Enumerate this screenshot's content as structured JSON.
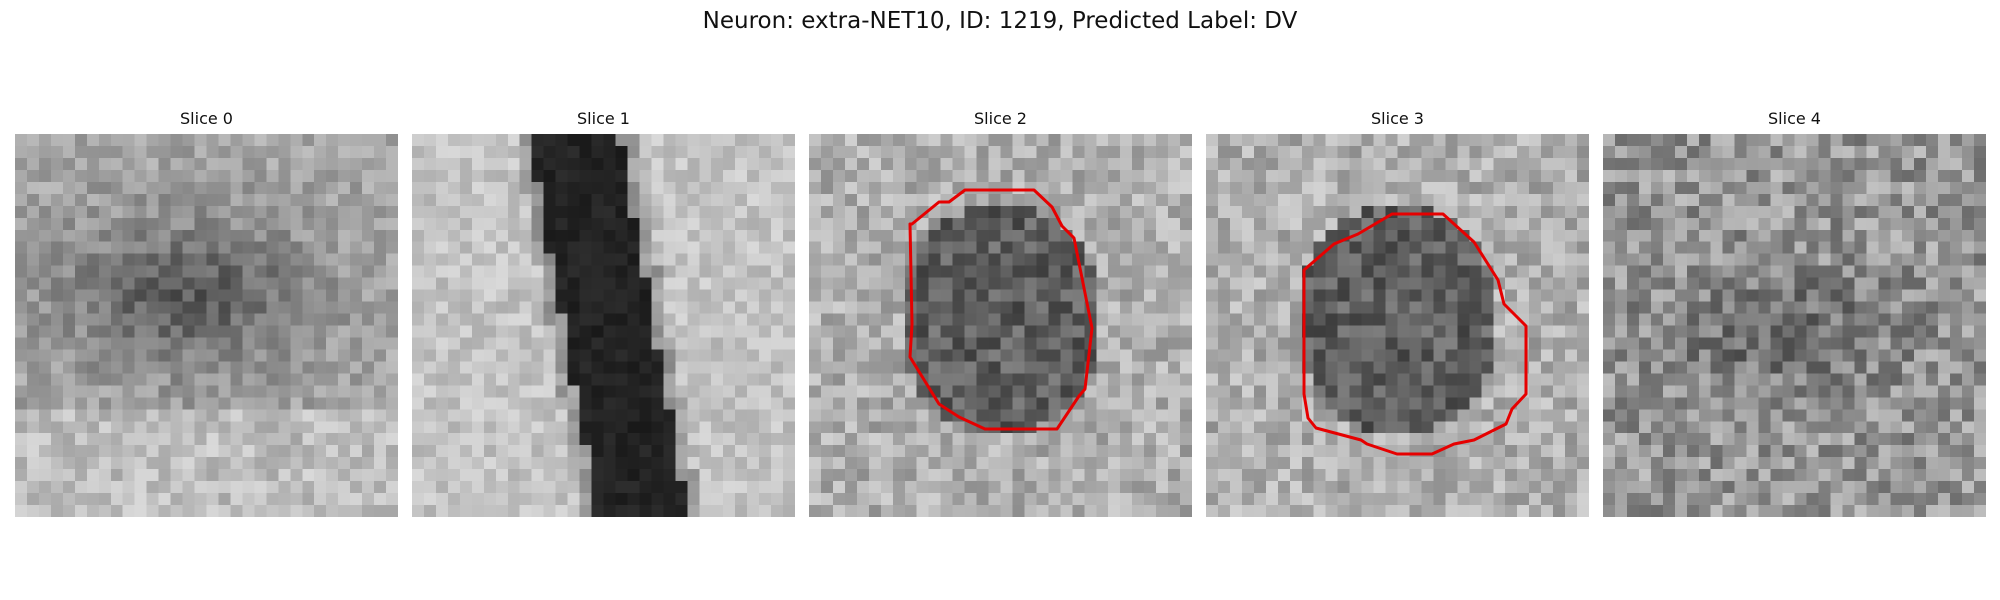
{
  "figure": {
    "title": "Neuron: extra-NET10, ID: 1219, Predicted Label: DV",
    "outline_color": "#e60000",
    "panels": [
      {
        "title": "Slice 0",
        "pattern": "blob",
        "has_outline": false
      },
      {
        "title": "Slice 1",
        "pattern": "band",
        "has_outline": false
      },
      {
        "title": "Slice 2",
        "pattern": "round",
        "has_outline": true
      },
      {
        "title": "Slice 3",
        "pattern": "round",
        "has_outline": true
      },
      {
        "title": "Slice 4",
        "pattern": "noise",
        "has_outline": false
      }
    ]
  }
}
